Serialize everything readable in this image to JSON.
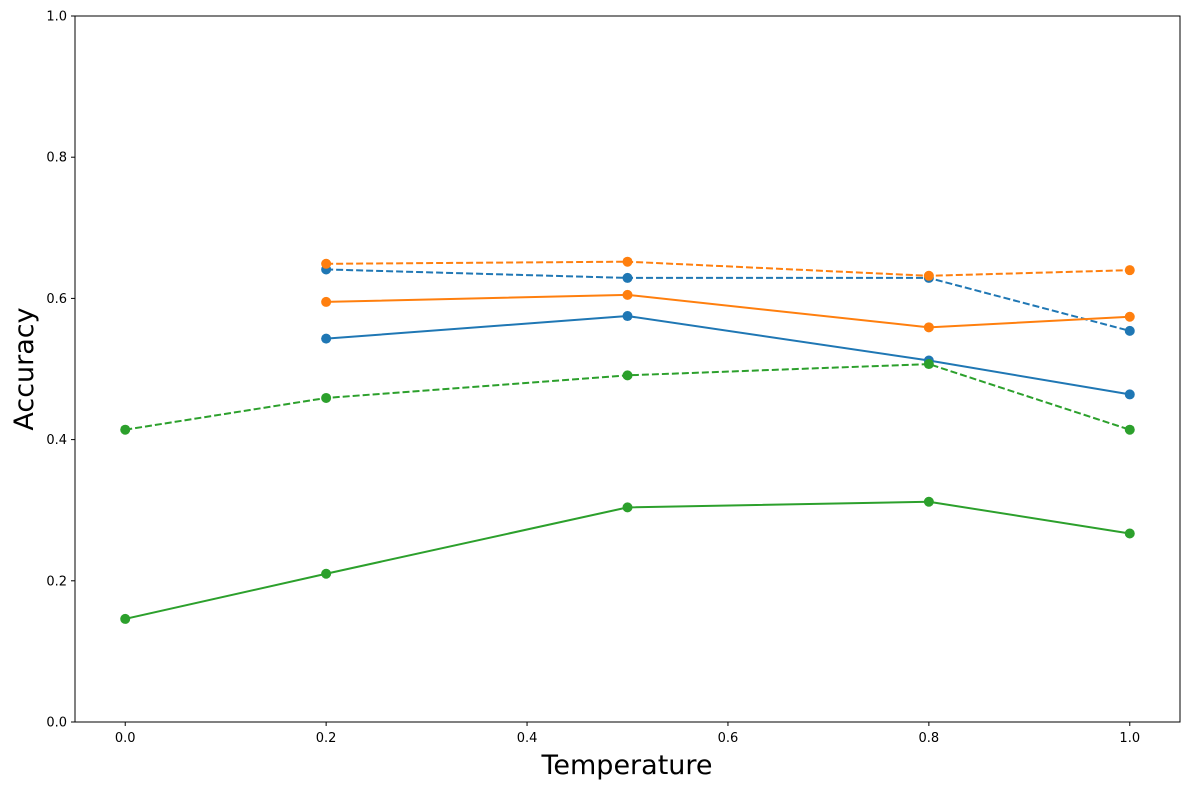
{
  "chart_data": {
    "type": "line",
    "title": "",
    "xlabel": "Temperature",
    "ylabel": "Accuracy",
    "xlim": [
      -0.05,
      1.05
    ],
    "ylim": [
      0.0,
      1.0
    ],
    "x_ticks": [
      0.0,
      0.2,
      0.4,
      0.6,
      0.8,
      1.0
    ],
    "x_tick_labels": [
      "0.0",
      "0.2",
      "0.4",
      "0.6",
      "0.8",
      "1.0"
    ],
    "y_ticks": [
      0.0,
      0.2,
      0.4,
      0.6,
      0.8,
      1.0
    ],
    "y_tick_labels": [
      "0.0",
      "0.2",
      "0.4",
      "0.6",
      "0.8",
      "1.0"
    ],
    "grid": false,
    "legend": "none",
    "series": [
      {
        "color": "#1f77b4",
        "style": "solid",
        "marker": "circle",
        "x": [
          0.2,
          0.5,
          0.8,
          1.0
        ],
        "y": [
          0.543,
          0.575,
          0.512,
          0.464
        ]
      },
      {
        "color": "#1f77b4",
        "style": "dashed",
        "marker": "circle",
        "x": [
          0.2,
          0.5,
          0.8,
          1.0
        ],
        "y": [
          0.641,
          0.629,
          0.629,
          0.554
        ]
      },
      {
        "color": "#ff7f0e",
        "style": "solid",
        "marker": "circle",
        "x": [
          0.2,
          0.5,
          0.8,
          1.0
        ],
        "y": [
          0.595,
          0.605,
          0.559,
          0.574
        ]
      },
      {
        "color": "#ff7f0e",
        "style": "dashed",
        "marker": "circle",
        "x": [
          0.2,
          0.5,
          0.8,
          1.0
        ],
        "y": [
          0.649,
          0.652,
          0.632,
          0.64
        ]
      },
      {
        "color": "#2ca02c",
        "style": "solid",
        "marker": "circle",
        "x": [
          0.0,
          0.2,
          0.5,
          0.8,
          1.0
        ],
        "y": [
          0.146,
          0.21,
          0.304,
          0.312,
          0.267
        ]
      },
      {
        "color": "#2ca02c",
        "style": "dashed",
        "marker": "circle",
        "x": [
          0.0,
          0.2,
          0.5,
          0.8,
          1.0
        ],
        "y": [
          0.414,
          0.459,
          0.491,
          0.507,
          0.414
        ]
      }
    ]
  }
}
